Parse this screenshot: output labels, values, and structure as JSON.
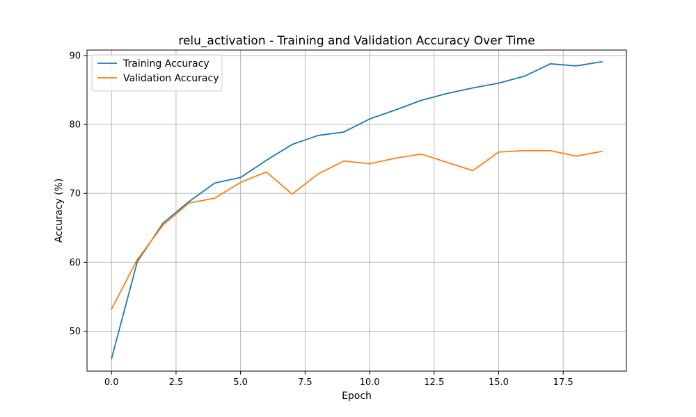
{
  "chart_data": {
    "type": "line",
    "title": "relu_activation - Training and Validation Accuracy Over Time",
    "xlabel": "Epoch",
    "ylabel": "Accuracy (%)",
    "xlim": [
      -0.95,
      19.95
    ],
    "ylim": [
      44.2,
      90.8
    ],
    "x_ticks": [
      0.0,
      2.5,
      5.0,
      7.5,
      10.0,
      12.5,
      15.0,
      17.5
    ],
    "x_tick_labels": [
      "0.0",
      "2.5",
      "5.0",
      "7.5",
      "10.0",
      "12.5",
      "15.0",
      "17.5"
    ],
    "y_ticks": [
      50,
      60,
      70,
      80,
      90
    ],
    "y_tick_labels": [
      "50",
      "60",
      "70",
      "80",
      "90"
    ],
    "grid": true,
    "legend_position": "upper-left",
    "x": [
      0,
      1,
      2,
      3,
      4,
      5,
      6,
      7,
      8,
      9,
      10,
      11,
      12,
      13,
      14,
      15,
      16,
      17,
      18,
      19
    ],
    "series": [
      {
        "name": "Training Accuracy",
        "color": "#1f77b4",
        "values": [
          46.0,
          60.1,
          65.7,
          68.8,
          71.5,
          72.3,
          74.8,
          77.1,
          78.4,
          78.9,
          80.8,
          82.1,
          83.5,
          84.5,
          85.3,
          86.0,
          87.0,
          88.8,
          88.5,
          89.1
        ]
      },
      {
        "name": "Validation Accuracy",
        "color": "#ff7f0e",
        "values": [
          53.2,
          60.4,
          65.4,
          68.6,
          69.3,
          71.6,
          73.1,
          69.9,
          72.8,
          74.7,
          74.3,
          75.1,
          75.7,
          74.5,
          73.3,
          76.0,
          76.2,
          76.2,
          75.4,
          76.1
        ]
      }
    ]
  }
}
